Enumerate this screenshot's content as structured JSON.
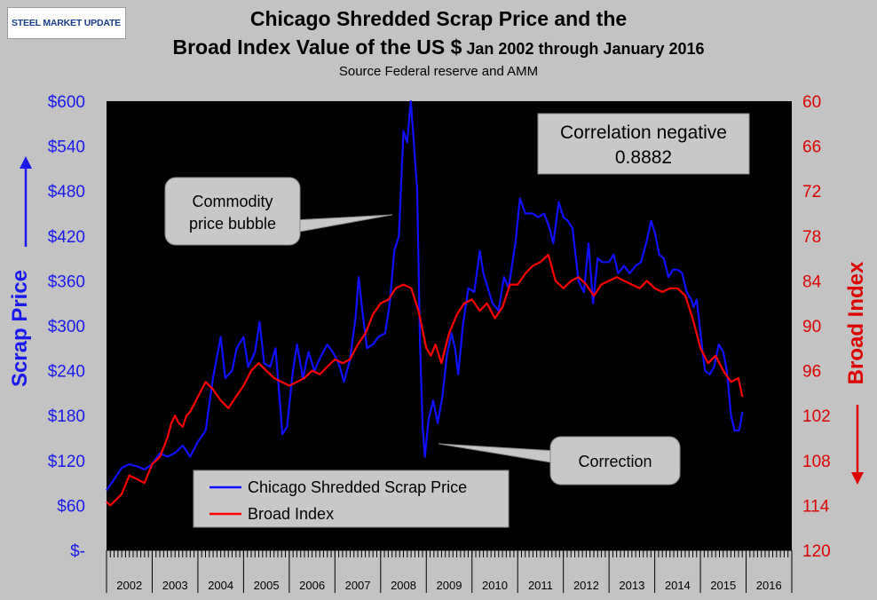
{
  "header": {
    "logo_text": "STEEL MARKET UPDATE",
    "title_line1": "Chicago Shredded Scrap Price and the",
    "title_line2_main": "Broad Index Value of the US $",
    "title_line2_small": " Jan 2002 through January 2016",
    "subtitle": "Source Federal reserve and AMM"
  },
  "colors": {
    "background": "#c3c3c3",
    "plot_bg": "#000000",
    "scrap": "#1010ff",
    "broad": "#ff0000",
    "left_axis_text": "#1a1aee",
    "right_axis_text": "#dd0000",
    "callout_bg": "#c8c8c8"
  },
  "chart_data": {
    "type": "line",
    "title": "Chicago Shredded Scrap Price and the Broad Index Value of the US $ Jan 2002 through January 2016",
    "subtitle": "Source Federal reserve and AMM",
    "x_range": [
      2002.0,
      2017.0
    ],
    "x_categories": [
      "2002",
      "2003",
      "2004",
      "2005",
      "2006",
      "2007",
      "2008",
      "2009",
      "2010",
      "2011",
      "2012",
      "2013",
      "2014",
      "2015",
      "2016"
    ],
    "y_left": {
      "label": "Scrap Price",
      "range": [
        0,
        600
      ],
      "ticks": [
        0,
        60,
        120,
        180,
        240,
        300,
        360,
        420,
        480,
        540,
        600
      ],
      "tick_labels": [
        "$-",
        "$60",
        "$120",
        "$180",
        "$240",
        "$300",
        "$360",
        "$420",
        "$480",
        "$540",
        "$600"
      ]
    },
    "y_right": {
      "label": "Broad Index",
      "range": [
        60,
        120
      ],
      "inverted": true,
      "ticks": [
        60,
        66,
        72,
        78,
        84,
        90,
        96,
        102,
        108,
        114,
        120
      ],
      "tick_labels": [
        "60",
        "66",
        "72",
        "78",
        "84",
        "90",
        "96",
        "102",
        "108",
        "114",
        "120"
      ]
    },
    "legend": {
      "placement": "bottom-left"
    },
    "series": [
      {
        "name": "Chicago Shredded Scrap Price",
        "axis": "left",
        "color": "#1010ff",
        "points": [
          [
            2002.0,
            80
          ],
          [
            2002.17,
            95
          ],
          [
            2002.33,
            110
          ],
          [
            2002.5,
            115
          ],
          [
            2002.67,
            112
          ],
          [
            2002.83,
            108
          ],
          [
            2003.0,
            115
          ],
          [
            2003.17,
            130
          ],
          [
            2003.33,
            125
          ],
          [
            2003.5,
            130
          ],
          [
            2003.67,
            140
          ],
          [
            2003.83,
            125
          ],
          [
            2004.0,
            145
          ],
          [
            2004.17,
            160
          ],
          [
            2004.33,
            230
          ],
          [
            2004.5,
            285
          ],
          [
            2004.6,
            230
          ],
          [
            2004.75,
            240
          ],
          [
            2004.85,
            270
          ],
          [
            2005.0,
            285
          ],
          [
            2005.1,
            245
          ],
          [
            2005.25,
            265
          ],
          [
            2005.35,
            305
          ],
          [
            2005.45,
            250
          ],
          [
            2005.58,
            245
          ],
          [
            2005.7,
            270
          ],
          [
            2005.78,
            210
          ],
          [
            2005.85,
            155
          ],
          [
            2005.95,
            165
          ],
          [
            2006.08,
            240
          ],
          [
            2006.17,
            275
          ],
          [
            2006.3,
            230
          ],
          [
            2006.42,
            265
          ],
          [
            2006.55,
            240
          ],
          [
            2006.7,
            260
          ],
          [
            2006.83,
            275
          ],
          [
            2006.95,
            265
          ],
          [
            2007.08,
            250
          ],
          [
            2007.2,
            225
          ],
          [
            2007.33,
            255
          ],
          [
            2007.45,
            310
          ],
          [
            2007.52,
            365
          ],
          [
            2007.6,
            320
          ],
          [
            2007.7,
            270
          ],
          [
            2007.83,
            275
          ],
          [
            2007.95,
            285
          ],
          [
            2008.1,
            290
          ],
          [
            2008.2,
            330
          ],
          [
            2008.3,
            400
          ],
          [
            2008.4,
            420
          ],
          [
            2008.5,
            560
          ],
          [
            2008.58,
            545
          ],
          [
            2008.66,
            600
          ],
          [
            2008.72,
            550
          ],
          [
            2008.8,
            480
          ],
          [
            2008.86,
            280
          ],
          [
            2008.92,
            165
          ],
          [
            2008.97,
            125
          ],
          [
            2009.05,
            175
          ],
          [
            2009.15,
            200
          ],
          [
            2009.25,
            170
          ],
          [
            2009.35,
            205
          ],
          [
            2009.45,
            260
          ],
          [
            2009.55,
            290
          ],
          [
            2009.63,
            270
          ],
          [
            2009.7,
            235
          ],
          [
            2009.8,
            300
          ],
          [
            2009.92,
            350
          ],
          [
            2010.05,
            345
          ],
          [
            2010.17,
            400
          ],
          [
            2010.25,
            370
          ],
          [
            2010.35,
            350
          ],
          [
            2010.45,
            330
          ],
          [
            2010.58,
            320
          ],
          [
            2010.7,
            365
          ],
          [
            2010.8,
            350
          ],
          [
            2010.95,
            410
          ],
          [
            2011.05,
            470
          ],
          [
            2011.17,
            450
          ],
          [
            2011.33,
            450
          ],
          [
            2011.45,
            445
          ],
          [
            2011.58,
            450
          ],
          [
            2011.7,
            430
          ],
          [
            2011.78,
            410
          ],
          [
            2011.9,
            465
          ],
          [
            2012.0,
            445
          ],
          [
            2012.1,
            440
          ],
          [
            2012.2,
            430
          ],
          [
            2012.33,
            360
          ],
          [
            2012.45,
            345
          ],
          [
            2012.55,
            410
          ],
          [
            2012.65,
            330
          ],
          [
            2012.75,
            390
          ],
          [
            2012.85,
            385
          ],
          [
            2013.0,
            385
          ],
          [
            2013.1,
            395
          ],
          [
            2013.2,
            370
          ],
          [
            2013.33,
            380
          ],
          [
            2013.45,
            370
          ],
          [
            2013.58,
            380
          ],
          [
            2013.7,
            385
          ],
          [
            2013.83,
            415
          ],
          [
            2013.92,
            440
          ],
          [
            2014.0,
            425
          ],
          [
            2014.1,
            395
          ],
          [
            2014.2,
            390
          ],
          [
            2014.3,
            365
          ],
          [
            2014.4,
            375
          ],
          [
            2014.5,
            375
          ],
          [
            2014.6,
            370
          ],
          [
            2014.7,
            345
          ],
          [
            2014.8,
            335
          ],
          [
            2014.85,
            325
          ],
          [
            2014.92,
            335
          ],
          [
            2015.0,
            290
          ],
          [
            2015.1,
            240
          ],
          [
            2015.2,
            235
          ],
          [
            2015.3,
            245
          ],
          [
            2015.4,
            275
          ],
          [
            2015.5,
            265
          ],
          [
            2015.58,
            240
          ],
          [
            2015.67,
            180
          ],
          [
            2015.75,
            160
          ],
          [
            2015.85,
            160
          ],
          [
            2015.92,
            185
          ]
        ]
      },
      {
        "name": "Broad Index",
        "axis": "right",
        "color": "#ff0000",
        "points": [
          [
            2002.0,
            113.5
          ],
          [
            2002.08,
            114
          ],
          [
            2002.17,
            113.5
          ],
          [
            2002.33,
            112.5
          ],
          [
            2002.5,
            110
          ],
          [
            2002.67,
            110.5
          ],
          [
            2002.83,
            111
          ],
          [
            2003.0,
            108.5
          ],
          [
            2003.17,
            107.5
          ],
          [
            2003.33,
            105
          ],
          [
            2003.42,
            103
          ],
          [
            2003.5,
            102
          ],
          [
            2003.58,
            103
          ],
          [
            2003.67,
            103.5
          ],
          [
            2003.75,
            102
          ],
          [
            2003.83,
            101.5
          ],
          [
            2004.0,
            99.5
          ],
          [
            2004.17,
            97.5
          ],
          [
            2004.33,
            98.5
          ],
          [
            2004.5,
            100
          ],
          [
            2004.67,
            101
          ],
          [
            2004.83,
            99.5
          ],
          [
            2005.0,
            98
          ],
          [
            2005.17,
            96
          ],
          [
            2005.33,
            95
          ],
          [
            2005.5,
            96
          ],
          [
            2005.67,
            97
          ],
          [
            2005.83,
            97.5
          ],
          [
            2006.0,
            98
          ],
          [
            2006.17,
            97.5
          ],
          [
            2006.33,
            97
          ],
          [
            2006.5,
            96
          ],
          [
            2006.67,
            96.5
          ],
          [
            2006.83,
            95.5
          ],
          [
            2007.0,
            94.5
          ],
          [
            2007.17,
            95
          ],
          [
            2007.33,
            94.5
          ],
          [
            2007.5,
            92.5
          ],
          [
            2007.67,
            91
          ],
          [
            2007.83,
            88.5
          ],
          [
            2008.0,
            87
          ],
          [
            2008.17,
            86.5
          ],
          [
            2008.33,
            85
          ],
          [
            2008.5,
            84.5
          ],
          [
            2008.67,
            85
          ],
          [
            2008.83,
            88
          ],
          [
            2009.0,
            93
          ],
          [
            2009.1,
            94
          ],
          [
            2009.2,
            92.5
          ],
          [
            2009.33,
            95
          ],
          [
            2009.5,
            91
          ],
          [
            2009.67,
            88.5
          ],
          [
            2009.83,
            87
          ],
          [
            2010.0,
            86.5
          ],
          [
            2010.17,
            88
          ],
          [
            2010.33,
            87
          ],
          [
            2010.5,
            89
          ],
          [
            2010.67,
            87.5
          ],
          [
            2010.83,
            84.5
          ],
          [
            2011.0,
            84.5
          ],
          [
            2011.17,
            83
          ],
          [
            2011.33,
            82
          ],
          [
            2011.5,
            81.5
          ],
          [
            2011.67,
            80.5
          ],
          [
            2011.83,
            84
          ],
          [
            2012.0,
            85
          ],
          [
            2012.17,
            84
          ],
          [
            2012.33,
            83.5
          ],
          [
            2012.5,
            84.5
          ],
          [
            2012.67,
            86
          ],
          [
            2012.83,
            84.5
          ],
          [
            2013.0,
            84
          ],
          [
            2013.17,
            83.5
          ],
          [
            2013.33,
            84
          ],
          [
            2013.5,
            84.5
          ],
          [
            2013.67,
            85
          ],
          [
            2013.83,
            84
          ],
          [
            2014.0,
            85
          ],
          [
            2014.17,
            85.5
          ],
          [
            2014.33,
            85
          ],
          [
            2014.5,
            85
          ],
          [
            2014.67,
            86
          ],
          [
            2014.83,
            89
          ],
          [
            2015.0,
            93
          ],
          [
            2015.17,
            95
          ],
          [
            2015.33,
            94
          ],
          [
            2015.5,
            96
          ],
          [
            2015.67,
            97.5
          ],
          [
            2015.83,
            97
          ],
          [
            2015.92,
            99.5
          ]
        ]
      }
    ],
    "annotations": [
      {
        "text_lines": [
          "Commodity",
          "price bubble"
        ]
      },
      {
        "text_lines": [
          "Correlation negative",
          "0.8882"
        ]
      },
      {
        "text_lines": [
          "Correction"
        ]
      }
    ]
  }
}
